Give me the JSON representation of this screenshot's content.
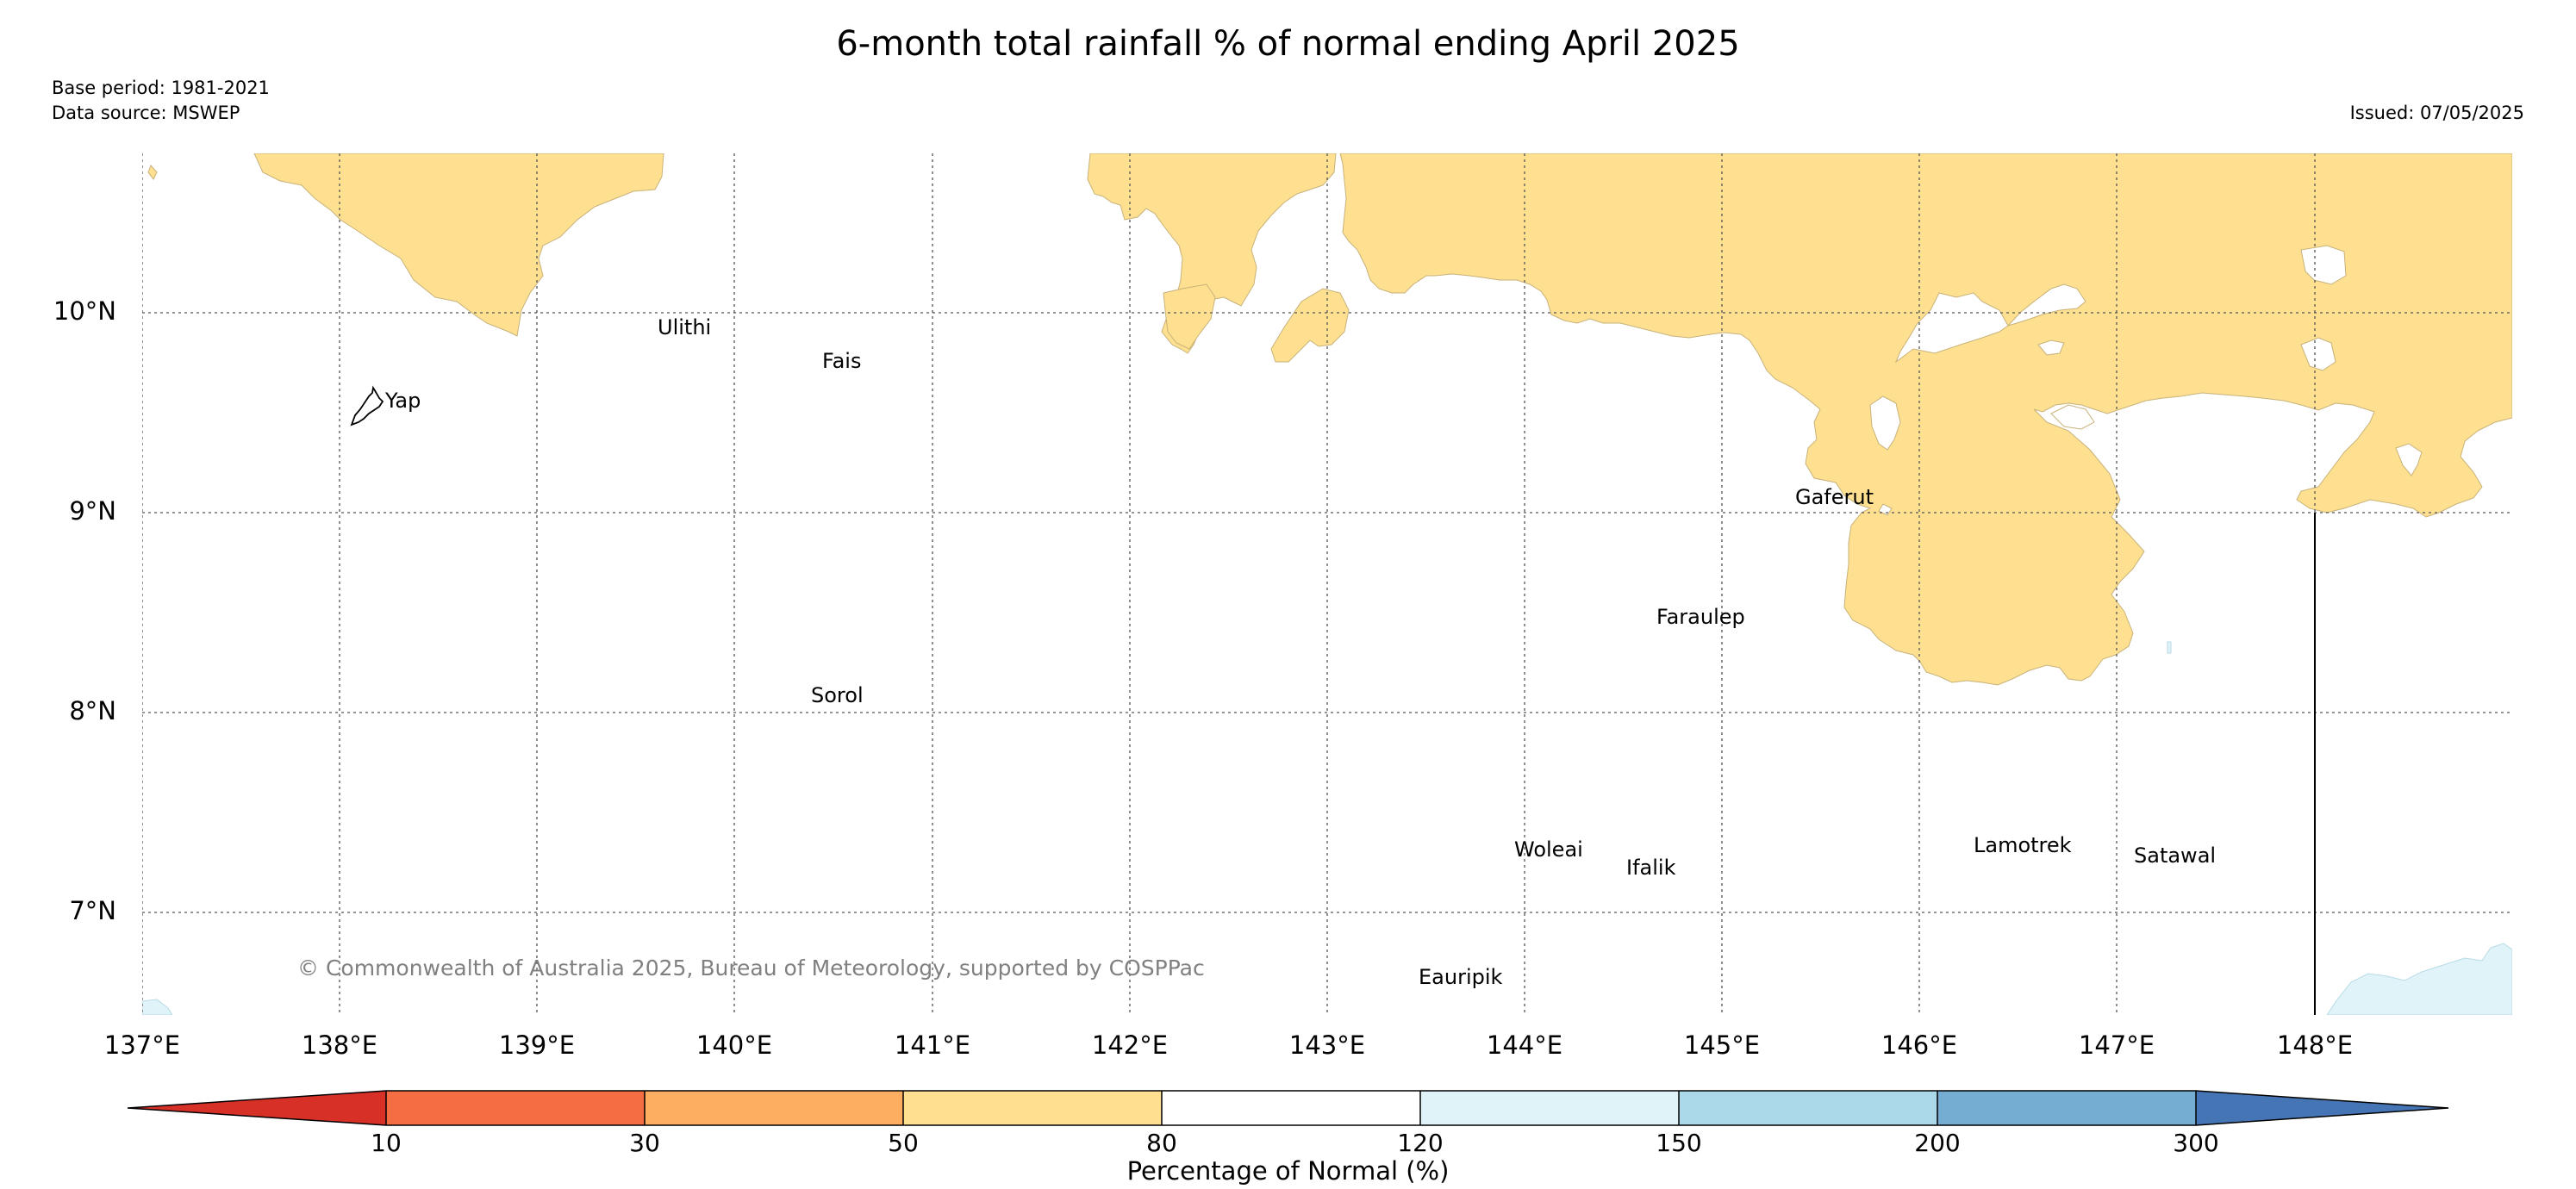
{
  "title": "6-month total rainfall % of normal ending April 2025",
  "base_period": "Base period: 1981-2021",
  "data_source": "Data source: MSWEP",
  "issued": "Issued: 07/05/2025",
  "copyright": "© Commonwealth of Australia 2025, Bureau of Meteorology, supported by COSPPac",
  "map": {
    "lon_range": [
      137.0,
      149.0
    ],
    "lat_range": [
      6.5,
      10.8
    ],
    "gridlines": true,
    "lat_labels": [
      "10°N",
      "9°N",
      "8°N",
      "7°N"
    ],
    "lon_labels": [
      "137°E",
      "138°E",
      "139°E",
      "140°E",
      "141°E",
      "142°E",
      "143°E",
      "144°E",
      "145°E",
      "146°E",
      "147°E",
      "148°E"
    ],
    "places": [
      {
        "name": "Yap",
        "lon": 138.23,
        "lat": 9.53
      },
      {
        "name": "Ulithi",
        "lon": 139.63,
        "lat": 9.92
      },
      {
        "name": "Fais",
        "lon": 140.43,
        "lat": 9.75
      },
      {
        "name": "Gaferut",
        "lon": 145.37,
        "lat": 9.07
      },
      {
        "name": "Faraulep",
        "lon": 144.67,
        "lat": 8.48
      },
      {
        "name": "Sorol",
        "lon": 140.38,
        "lat": 8.09
      },
      {
        "name": "Woleai",
        "lon": 143.93,
        "lat": 7.35
      },
      {
        "name": "Ifalik",
        "lon": 144.51,
        "lat": 7.25
      },
      {
        "name": "Lamotrek",
        "lon": 146.27,
        "lat": 7.36
      },
      {
        "name": "Satawal",
        "lon": 147.07,
        "lat": 7.31
      },
      {
        "name": "Eauripik",
        "lon": 143.47,
        "lat": 6.67
      }
    ]
  },
  "colors": {
    "below_10": "#d73027",
    "10_30": "#f46d43",
    "30_50": "#fdae61",
    "50_80": "#fee090",
    "80_120": "#ffffff",
    "120_150": "#e0f3f8",
    "150_200": "#abd9e9",
    "200_300": "#74add1",
    "above_300": "#4575b4"
  },
  "colorbar": {
    "title": "Percentage of Normal (%)",
    "ticks": [
      "10",
      "30",
      "50",
      "80",
      "120",
      "150",
      "200",
      "300"
    ]
  }
}
